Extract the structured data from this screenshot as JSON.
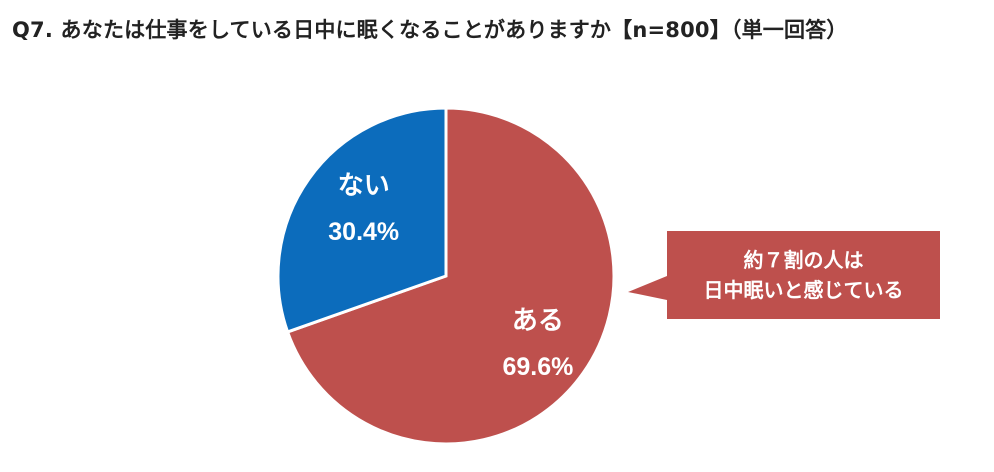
{
  "title": "Q7. あなたは仕事をしている日中に眠くなることがありますか【n=800】（単一回答）",
  "colors": {
    "aru": "#BE504D",
    "nai": "#0C6CBC",
    "callout": "#BE504D",
    "text_on_slice": "#ffffff"
  },
  "chart_data": {
    "type": "pie",
    "title": "Q7. あなたは仕事をしている日中に眠くなることがありますか【n=800】（単一回答）",
    "start": "12 o'clock",
    "direction": "clockwise",
    "slices": [
      {
        "name": "ある",
        "value": 69.6,
        "value_label": "69.6%",
        "color": "#BE504D"
      },
      {
        "name": "ない",
        "value": 30.4,
        "value_label": "30.4%",
        "color": "#0C6CBC"
      }
    ]
  },
  "callout": {
    "line1": "約７割の人は",
    "line2": "日中眠いと感じている"
  }
}
